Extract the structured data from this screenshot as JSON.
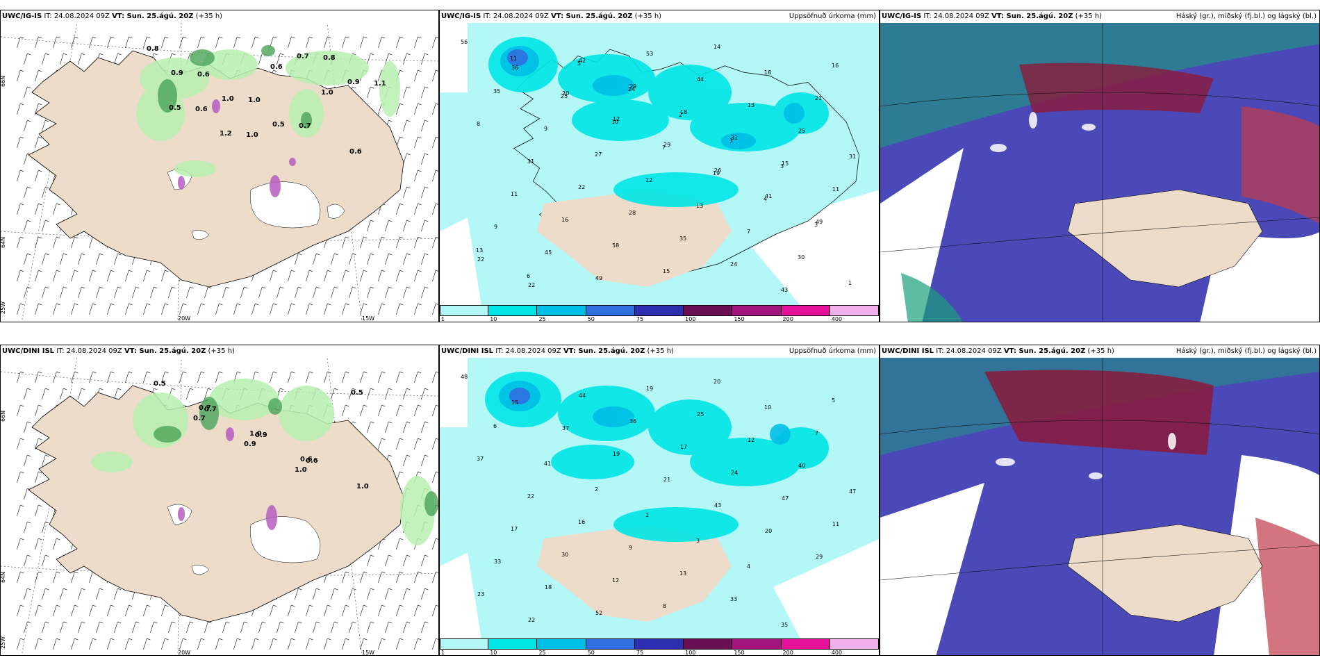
{
  "rows": [
    {
      "model": "UWC/IG-IS",
      "it_label": "IT: 24.08.2024 09Z",
      "vt_label": "VT: Sun. 25.ágú. 20Z",
      "lead": "(+35 h)"
    },
    {
      "model": "UWC/DINI ISL",
      "it_label": "IT: 24.08.2024 09Z",
      "vt_label": "VT: Sun. 25.ágú. 20Z",
      "lead": "(+35 h)"
    }
  ],
  "panel_titles": {
    "precip": "Uppsöfnuð úrkoma (mm)",
    "cloud": "Háský (gr.), miðský (fj.bl.) og lágský (bl.)"
  },
  "map_labels": {
    "lat66": "66N",
    "lat64": "64N",
    "lon25": "25W",
    "lon20": "20W",
    "lon15": "15W"
  },
  "colorbar": {
    "labels": [
      "1",
      "10",
      "25",
      "50",
      "75",
      "100",
      "150",
      "200",
      "400"
    ],
    "colors": [
      "#b3f7f7",
      "#00e6e6",
      "#00bfe6",
      "#2f6fe0",
      "#2d2fb0",
      "#6b0f55",
      "#a3157e",
      "#e6119a",
      "#f0b0ee"
    ]
  },
  "colors": {
    "land": "#ecdcc9",
    "cloud_high": "#4b48b8",
    "cloud_mid": "#8b1a3a",
    "cloud_low": "#1aa07a"
  },
  "precip_values_top": [
    "56",
    "36",
    "20",
    "12",
    "29",
    "26",
    "41",
    "49",
    "22",
    "22",
    "42",
    "29",
    "18",
    "31",
    "15",
    "11",
    "9",
    "45",
    "49",
    "53",
    "44",
    "13",
    "25",
    "31",
    "11",
    "16",
    "58",
    "15",
    "14",
    "18",
    "21",
    "8",
    "31",
    "22",
    "28",
    "35",
    "24",
    "43",
    "16",
    "35",
    "9",
    "27",
    "12",
    "13",
    "7",
    "30",
    "1",
    "11",
    "25",
    "10",
    "7",
    "19",
    "4",
    "3",
    "13",
    "6",
    "5",
    "24",
    "2",
    "1",
    "3"
  ],
  "precip_values_bottom": [
    "48",
    "15",
    "37",
    "19",
    "21",
    "43",
    "20",
    "29",
    "23",
    "22",
    "44",
    "36",
    "17",
    "24",
    "47",
    "11",
    "33",
    "18",
    "52",
    "19",
    "25",
    "12",
    "40",
    "47",
    "17",
    "30",
    "12",
    "8",
    "20",
    "10",
    "7",
    "37",
    "22",
    "16",
    "9",
    "13",
    "33",
    "35",
    "5",
    "6",
    "41",
    "2",
    "1",
    "3",
    "4"
  ],
  "wind_labels_top": [
    "0.8",
    "0.6",
    "1.0",
    "0.7",
    "0.6",
    "0.9",
    "1.0",
    "0.5",
    "0.8",
    "1.1",
    "0.6",
    "1.0",
    "0.7",
    "0.9",
    "0.5",
    "1.2",
    "0.6",
    "1.0"
  ],
  "wind_labels_bottom": [
    "0.5",
    "0.7",
    "0.9",
    "0.6",
    "1.0",
    "0.7",
    "1.0",
    "0.6",
    "0.5",
    "0.7",
    "0.9",
    "1.0"
  ]
}
